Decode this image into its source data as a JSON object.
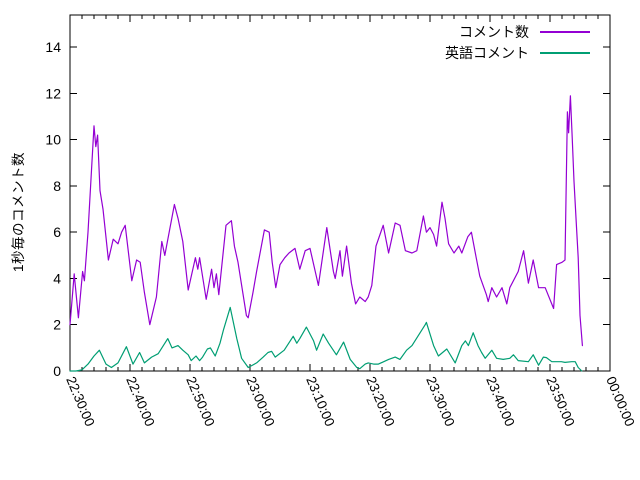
{
  "chart_data": {
    "type": "line",
    "title": "",
    "xlabel": "",
    "ylabel": "1秒毎のコメント数",
    "x_axis": {
      "kind": "time",
      "start_label": "22:30:00",
      "end_label": "00:00:00",
      "range_minutes": [
        0,
        90
      ],
      "major_tick_step_minutes": 10,
      "minor_tick_step_minutes": 2,
      "tick_labels": [
        "22:30:00",
        "22:40:00",
        "22:50:00",
        "23:00:00",
        "23:10:00",
        "23:20:00",
        "23:30:00",
        "23:40:00",
        "23:50:00",
        "00:00:00"
      ],
      "tick_label_rotation_deg": 67
    },
    "y_axis": {
      "ticks": [
        0,
        2,
        4,
        6,
        8,
        10,
        12,
        14
      ],
      "ylim": [
        0,
        15.4
      ]
    },
    "grid": false,
    "legend_position": "top-right-inside",
    "background_color": "#ffffff",
    "axis_color": "#000000",
    "series": [
      {
        "name": "コメント数",
        "color": "#9400d3",
        "points_minутes_note": "x = minutes after 22:30, y = comments per second",
        "points": [
          [
            0,
            2.0
          ],
          [
            0.7,
            4.2
          ],
          [
            1.4,
            2.3
          ],
          [
            2.1,
            4.3
          ],
          [
            2.4,
            3.9
          ],
          [
            3,
            6.0
          ],
          [
            3.5,
            8.3
          ],
          [
            4,
            10.6
          ],
          [
            4.3,
            9.7
          ],
          [
            4.6,
            10.2
          ],
          [
            5,
            7.8
          ],
          [
            5.5,
            7.0
          ],
          [
            6.4,
            4.8
          ],
          [
            7.2,
            5.7
          ],
          [
            8,
            5.5
          ],
          [
            8.6,
            6.0
          ],
          [
            9.2,
            6.3
          ],
          [
            10.3,
            3.9
          ],
          [
            11.1,
            4.8
          ],
          [
            11.7,
            4.7
          ],
          [
            12.4,
            3.4
          ],
          [
            13.3,
            2.0
          ],
          [
            14.4,
            3.2
          ],
          [
            15.3,
            5.6
          ],
          [
            15.8,
            5.0
          ],
          [
            17.4,
            7.2
          ],
          [
            18,
            6.6
          ],
          [
            18.8,
            5.6
          ],
          [
            19.7,
            3.5
          ],
          [
            20.9,
            4.9
          ],
          [
            21.3,
            4.4
          ],
          [
            21.6,
            4.9
          ],
          [
            22.7,
            3.1
          ],
          [
            23.6,
            4.4
          ],
          [
            24,
            3.6
          ],
          [
            24.4,
            4.2
          ],
          [
            24.8,
            3.3
          ],
          [
            26,
            6.3
          ],
          [
            26.9,
            6.5
          ],
          [
            27.4,
            5.4
          ],
          [
            28,
            4.7
          ],
          [
            29.4,
            2.4
          ],
          [
            29.7,
            2.3
          ],
          [
            30.5,
            3.4
          ],
          [
            31.1,
            4.3
          ],
          [
            32.4,
            6.1
          ],
          [
            33.2,
            6.0
          ],
          [
            33.7,
            4.7
          ],
          [
            34.3,
            3.6
          ],
          [
            35,
            4.6
          ],
          [
            35.8,
            4.9
          ],
          [
            36.5,
            5.1
          ],
          [
            37.5,
            5.3
          ],
          [
            38.3,
            4.4
          ],
          [
            39.2,
            5.2
          ],
          [
            40,
            5.3
          ],
          [
            41.4,
            3.7
          ],
          [
            42.8,
            6.2
          ],
          [
            43.9,
            4.3
          ],
          [
            44.2,
            4.0
          ],
          [
            45,
            5.2
          ],
          [
            45.4,
            4.1
          ],
          [
            46.1,
            5.4
          ],
          [
            46.9,
            3.8
          ],
          [
            47.6,
            2.9
          ],
          [
            48.3,
            3.2
          ],
          [
            49.2,
            3.0
          ],
          [
            49.7,
            3.2
          ],
          [
            50.3,
            3.7
          ],
          [
            51,
            5.4
          ],
          [
            52.2,
            6.3
          ],
          [
            52.8,
            5.5
          ],
          [
            53.1,
            5.1
          ],
          [
            54.2,
            6.4
          ],
          [
            55,
            6.3
          ],
          [
            55.9,
            5.2
          ],
          [
            57,
            5.1
          ],
          [
            57.8,
            5.2
          ],
          [
            58.9,
            6.7
          ],
          [
            59.4,
            6.0
          ],
          [
            60,
            6.2
          ],
          [
            60.6,
            5.9
          ],
          [
            61.1,
            5.4
          ],
          [
            62,
            7.3
          ],
          [
            62.5,
            6.6
          ],
          [
            63.1,
            5.5
          ],
          [
            64,
            5.1
          ],
          [
            64.8,
            5.4
          ],
          [
            65.3,
            5.1
          ],
          [
            66.3,
            5.8
          ],
          [
            66.9,
            6.0
          ],
          [
            67.7,
            4.9
          ],
          [
            68.3,
            4.1
          ],
          [
            69.4,
            3.3
          ],
          [
            69.7,
            3.0
          ],
          [
            70.3,
            3.6
          ],
          [
            71.1,
            3.2
          ],
          [
            72,
            3.6
          ],
          [
            72.8,
            2.9
          ],
          [
            73.3,
            3.6
          ],
          [
            74.7,
            4.3
          ],
          [
            75.6,
            5.2
          ],
          [
            76.4,
            3.8
          ],
          [
            77.2,
            4.8
          ],
          [
            78.1,
            3.6
          ],
          [
            79.2,
            3.6
          ],
          [
            80.6,
            2.7
          ],
          [
            81.1,
            4.6
          ],
          [
            82,
            4.7
          ],
          [
            82.5,
            4.8
          ],
          [
            82.9,
            11.2
          ],
          [
            83.1,
            10.3
          ],
          [
            83.4,
            11.9
          ],
          [
            83.7,
            10.1
          ],
          [
            84,
            8.2
          ],
          [
            84.4,
            6.3
          ],
          [
            84.7,
            4.9
          ],
          [
            85,
            2.4
          ],
          [
            85.4,
            1.1
          ]
        ]
      },
      {
        "name": "英語コメント",
        "color": "#009e73",
        "points": [
          [
            0,
            0
          ],
          [
            1,
            0
          ],
          [
            2,
            0.05
          ],
          [
            3,
            0.3
          ],
          [
            4,
            0.65
          ],
          [
            4.9,
            0.9
          ],
          [
            6,
            0.3
          ],
          [
            6.9,
            0.15
          ],
          [
            8,
            0.35
          ],
          [
            9.4,
            1.05
          ],
          [
            10.5,
            0.3
          ],
          [
            11.6,
            0.8
          ],
          [
            12.4,
            0.35
          ],
          [
            13.6,
            0.6
          ],
          [
            14.7,
            0.75
          ],
          [
            16.3,
            1.4
          ],
          [
            17,
            1.0
          ],
          [
            18,
            1.1
          ],
          [
            18.8,
            0.9
          ],
          [
            19.7,
            0.7
          ],
          [
            20.2,
            0.45
          ],
          [
            21,
            0.65
          ],
          [
            21.6,
            0.45
          ],
          [
            22.1,
            0.6
          ],
          [
            22.9,
            0.95
          ],
          [
            23.4,
            1.0
          ],
          [
            24.2,
            0.65
          ],
          [
            25,
            1.2
          ],
          [
            25.6,
            1.8
          ],
          [
            26.7,
            2.75
          ],
          [
            27.8,
            1.4
          ],
          [
            28.6,
            0.55
          ],
          [
            29.7,
            0.15
          ],
          [
            31.1,
            0.35
          ],
          [
            32.2,
            0.6
          ],
          [
            33,
            0.8
          ],
          [
            33.6,
            0.85
          ],
          [
            34.2,
            0.6
          ],
          [
            35.7,
            0.9
          ],
          [
            36.7,
            1.3
          ],
          [
            37.2,
            1.5
          ],
          [
            37.8,
            1.2
          ],
          [
            38.3,
            1.4
          ],
          [
            39.4,
            1.9
          ],
          [
            40.6,
            1.3
          ],
          [
            41.1,
            0.9
          ],
          [
            42.2,
            1.6
          ],
          [
            43.1,
            1.2
          ],
          [
            44.4,
            0.7
          ],
          [
            45.6,
            1.25
          ],
          [
            46.7,
            0.5
          ],
          [
            47.8,
            0.15
          ],
          [
            48.3,
            0.1
          ],
          [
            49.2,
            0.3
          ],
          [
            49.7,
            0.35
          ],
          [
            50.6,
            0.3
          ],
          [
            51.4,
            0.3
          ],
          [
            53.1,
            0.5
          ],
          [
            54.2,
            0.6
          ],
          [
            55,
            0.5
          ],
          [
            56.1,
            0.9
          ],
          [
            57,
            1.1
          ],
          [
            59.2,
            2.0
          ],
          [
            59.4,
            2.1
          ],
          [
            60.6,
            1.1
          ],
          [
            61.4,
            0.65
          ],
          [
            62.8,
            0.95
          ],
          [
            64.2,
            0.35
          ],
          [
            65.3,
            1.1
          ],
          [
            65.9,
            1.3
          ],
          [
            66.4,
            1.1
          ],
          [
            67.2,
            1.65
          ],
          [
            68,
            1.1
          ],
          [
            68.6,
            0.8
          ],
          [
            69.2,
            0.55
          ],
          [
            70.3,
            0.9
          ],
          [
            71.1,
            0.55
          ],
          [
            72.2,
            0.5
          ],
          [
            73.3,
            0.55
          ],
          [
            73.9,
            0.7
          ],
          [
            74.7,
            0.45
          ],
          [
            76.4,
            0.4
          ],
          [
            77.2,
            0.7
          ],
          [
            78.1,
            0.25
          ],
          [
            78.9,
            0.6
          ],
          [
            79.4,
            0.58
          ],
          [
            80.3,
            0.4
          ],
          [
            81.9,
            0.4
          ],
          [
            82.5,
            0.37
          ],
          [
            83.6,
            0.4
          ],
          [
            84.2,
            0.4
          ],
          [
            84.7,
            0.15
          ],
          [
            85.3,
            0
          ]
        ]
      }
    ]
  }
}
